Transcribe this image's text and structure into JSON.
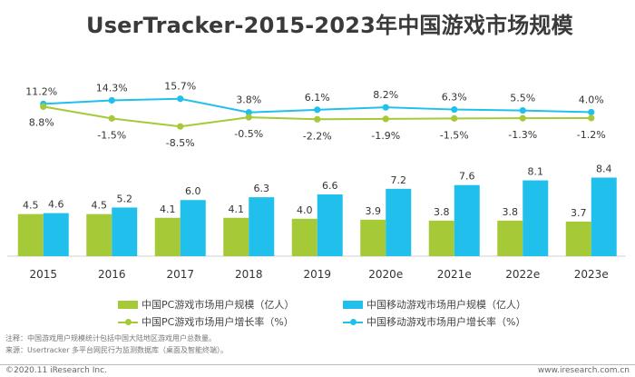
{
  "title": "UserTracker-2015-2023年中国游戏市场规模",
  "chart_data": {
    "type": "bar",
    "categories": [
      "2015",
      "2016",
      "2017",
      "2018",
      "2019",
      "2020e",
      "2021e",
      "2022e",
      "2023e"
    ],
    "series": [
      {
        "name": "中国PC游戏市场用户规模（亿人）",
        "kind": "bar",
        "color": "#a6c937",
        "values": [
          4.5,
          4.5,
          4.1,
          4.1,
          4.0,
          3.9,
          3.8,
          3.8,
          3.7
        ],
        "labels": [
          "4.5",
          "4.5",
          "4.1",
          "4.1",
          "4.0",
          "3.9",
          "3.8",
          "3.8",
          "3.7"
        ]
      },
      {
        "name": "中国移动游戏市场用户规模（亿人）",
        "kind": "bar",
        "color": "#21c0ec",
        "values": [
          4.6,
          5.2,
          6.0,
          6.3,
          6.6,
          7.2,
          7.6,
          8.1,
          8.4
        ],
        "labels": [
          "4.6",
          "5.2",
          "6.0",
          "6.3",
          "6.6",
          "7.2",
          "7.6",
          "8.1",
          "8.4"
        ]
      },
      {
        "name": "中国PC游戏市场用户增长率（%）",
        "kind": "line",
        "color": "#a6c937",
        "values": [
          8.8,
          -1.5,
          -8.5,
          -0.5,
          -2.2,
          -1.9,
          -1.5,
          -1.3,
          -1.2
        ],
        "labels": [
          "8.8%",
          "-1.5%",
          "-8.5%",
          "-0.5%",
          "-2.2%",
          "-1.9%",
          "-1.5%",
          "-1.3%",
          "-1.2%"
        ]
      },
      {
        "name": "中国移动游戏市场用户增长率（%）",
        "kind": "line",
        "color": "#21c0ec",
        "values": [
          11.2,
          14.3,
          15.7,
          3.8,
          6.1,
          8.2,
          6.3,
          5.5,
          4.0
        ],
        "labels": [
          "11.2%",
          "14.3%",
          "15.7%",
          "3.8%",
          "6.1%",
          "8.2%",
          "6.3%",
          "5.5%",
          "4.0%"
        ]
      }
    ]
  },
  "legend": [
    {
      "label": "中国PC游戏市场用户规模（亿人）",
      "type": "bar",
      "color": "#a6c937"
    },
    {
      "label": "中国移动游戏市场用户规模（亿人）",
      "type": "bar",
      "color": "#21c0ec"
    },
    {
      "label": "中国PC游戏市场用户增长率（%）",
      "type": "line",
      "color": "#a6c937"
    },
    {
      "label": "中国移动游戏市场用户增长率（%）",
      "type": "line",
      "color": "#21c0ec"
    }
  ],
  "notes": {
    "note": "注释：中国游戏用户规模统计包括中国大陆地区游戏用户总数量。",
    "source": "来源：Usertracker 多平台网民行为监测数据库（桌面及智能终端）。"
  },
  "footer": {
    "left": "©2020.11 iResearch Inc.",
    "right": "www.iresearch.com.cn"
  }
}
